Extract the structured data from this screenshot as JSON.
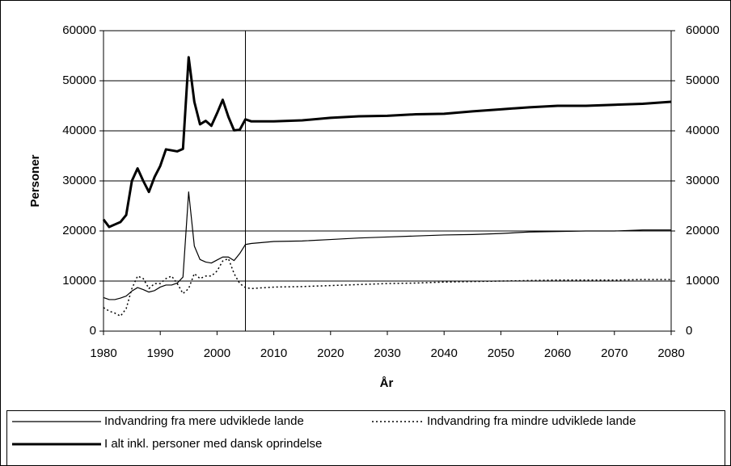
{
  "chart_data": {
    "type": "line",
    "xlabel": "År",
    "ylabel": "Personer",
    "x": [
      1980,
      1981,
      1982,
      1983,
      1984,
      1985,
      1986,
      1987,
      1988,
      1989,
      1990,
      1991,
      1992,
      1993,
      1994,
      1995,
      1996,
      1997,
      1998,
      1999,
      2000,
      2001,
      2002,
      2003,
      2004,
      2005,
      2006,
      2010,
      2015,
      2020,
      2025,
      2030,
      2035,
      2040,
      2045,
      2050,
      2055,
      2060,
      2065,
      2070,
      2075,
      2080
    ],
    "series": [
      {
        "name": "Indvandring fra mere udviklede lande",
        "color": "#000000",
        "width": 1.2,
        "dash": "none",
        "values": [
          6700,
          6300,
          6300,
          6600,
          7000,
          8000,
          8700,
          8300,
          7800,
          8100,
          8800,
          9200,
          9200,
          9600,
          10800,
          27800,
          17000,
          14300,
          13800,
          13600,
          14200,
          14800,
          14800,
          14100,
          15500,
          17300,
          17500,
          17900,
          18000,
          18300,
          18600,
          18800,
          19000,
          19200,
          19300,
          19500,
          19800,
          19900,
          20000,
          20000,
          20200,
          20200
        ]
      },
      {
        "name": "Indvandring fra mindre udviklede lande",
        "color": "#000000",
        "width": 1.5,
        "dash": "2 3",
        "values": [
          4700,
          4000,
          3600,
          3000,
          4500,
          8500,
          11000,
          10500,
          8500,
          9500,
          9500,
          10500,
          11000,
          9500,
          7500,
          8500,
          11500,
          10500,
          11000,
          11000,
          12000,
          14000,
          14500,
          11500,
          9500,
          8700,
          8500,
          8800,
          8900,
          9100,
          9300,
          9500,
          9600,
          9800,
          9900,
          10000,
          10100,
          10200,
          10200,
          10200,
          10300,
          10300
        ]
      },
      {
        "name": "I alt inkl. personer med dansk oprindelse",
        "color": "#000000",
        "width": 3,
        "dash": "none",
        "values": [
          22300,
          20800,
          21300,
          21800,
          23200,
          30000,
          32500,
          30000,
          27800,
          30800,
          33000,
          36300,
          36100,
          35900,
          36400,
          54700,
          45800,
          41300,
          42000,
          41000,
          43500,
          46200,
          42800,
          40100,
          40200,
          42300,
          41900,
          41900,
          42100,
          42600,
          42900,
          43000,
          43300,
          43400,
          43900,
          44300,
          44700,
          45000,
          45000,
          45200,
          45400,
          45800
        ]
      }
    ],
    "xlim": [
      1980,
      2080
    ],
    "xticks": [
      1980,
      1990,
      2000,
      2010,
      2020,
      2030,
      2040,
      2050,
      2060,
      2070,
      2080
    ],
    "ylim": [
      0,
      60000
    ],
    "yticks": [
      0,
      10000,
      20000,
      30000,
      40000,
      50000,
      60000
    ],
    "y2lim": [
      0,
      60000
    ],
    "y2ticks": [
      0,
      10000,
      20000,
      30000,
      40000,
      50000,
      60000
    ],
    "vline": 2005,
    "grid": true,
    "legend": "bottom"
  }
}
